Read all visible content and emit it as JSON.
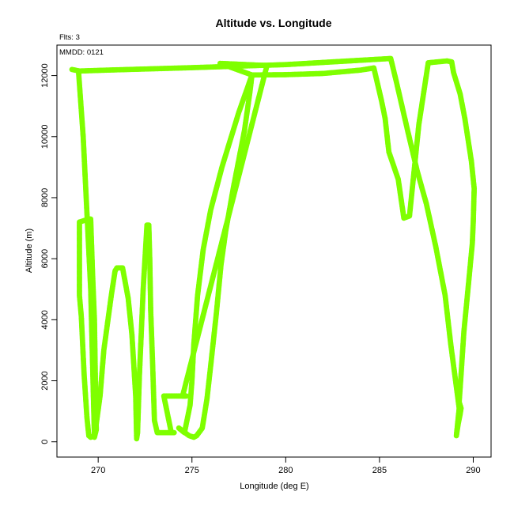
{
  "chart_data": {
    "type": "scatter",
    "title": "Altitude vs. Longitude",
    "xlabel": "Longitude (deg E)",
    "ylabel": "Altitude (m)",
    "annotations": [
      "Flts: 3",
      "MMDD: 0121"
    ],
    "xlim": [
      267.8,
      290.95
    ],
    "ylim": [
      -500,
      13000
    ],
    "x_ticks": [
      270,
      275,
      280,
      285,
      290
    ],
    "y_ticks": [
      0,
      2000,
      4000,
      6000,
      8000,
      10000,
      12000
    ],
    "grid": false,
    "legend": "none",
    "color": "#7fff00",
    "series": [
      {
        "points": [
          [
            268.6,
            12200
          ],
          [
            269.0,
            12150
          ],
          [
            270.5,
            12180
          ],
          [
            275.0,
            12260
          ],
          [
            280.0,
            12360
          ],
          [
            285.6,
            12560
          ],
          [
            285.9,
            11800
          ],
          [
            286.5,
            10200
          ],
          [
            287.0,
            8900
          ],
          [
            287.5,
            7800
          ],
          [
            288.0,
            6400
          ],
          [
            288.5,
            4800
          ],
          [
            288.8,
            3200
          ],
          [
            289.1,
            1800
          ],
          [
            289.25,
            1100
          ],
          [
            289.1,
            200
          ],
          [
            289.2,
            600
          ],
          [
            289.3,
            900
          ],
          [
            289.35,
            1100
          ],
          [
            289.25,
            1300
          ],
          [
            289.35,
            2200
          ],
          [
            289.5,
            3600
          ],
          [
            289.75,
            5200
          ],
          [
            289.95,
            6500
          ],
          [
            290.0,
            7200
          ],
          [
            290.05,
            8300
          ],
          [
            289.9,
            9200
          ],
          [
            289.55,
            10600
          ],
          [
            289.3,
            11400
          ],
          [
            288.95,
            12100
          ],
          [
            288.85,
            12450
          ],
          [
            288.6,
            12480
          ],
          [
            287.6,
            12420
          ],
          [
            287.1,
            10400
          ],
          [
            286.6,
            7400
          ],
          [
            286.3,
            7330
          ],
          [
            286.0,
            8600
          ],
          [
            285.5,
            9500
          ],
          [
            285.3,
            10600
          ],
          [
            285.1,
            11200
          ],
          [
            284.7,
            12250
          ],
          [
            284.0,
            12180
          ],
          [
            282.0,
            12070
          ],
          [
            280.0,
            12030
          ],
          [
            278.2,
            12020
          ],
          [
            277.5,
            10800
          ],
          [
            276.6,
            9000
          ],
          [
            276.0,
            7600
          ],
          [
            275.6,
            6300
          ],
          [
            275.3,
            4800
          ],
          [
            275.1,
            3200
          ],
          [
            275.0,
            2000
          ],
          [
            274.9,
            1200
          ],
          [
            274.6,
            300
          ],
          [
            274.3,
            450
          ],
          [
            274.85,
            200
          ],
          [
            275.1,
            150
          ],
          [
            275.25,
            200
          ],
          [
            275.55,
            450
          ],
          [
            275.8,
            1400
          ],
          [
            276.0,
            2500
          ],
          [
            276.3,
            4200
          ],
          [
            276.55,
            5800
          ],
          [
            276.8,
            6900
          ],
          [
            277.2,
            8300
          ],
          [
            277.8,
            10200
          ],
          [
            278.1,
            11500
          ],
          [
            278.2,
            12020
          ],
          [
            276.5,
            12400
          ],
          [
            279.0,
            12330
          ],
          [
            274.5,
            1500
          ],
          [
            274.7,
            1500
          ],
          [
            274.2,
            1500
          ],
          [
            274.0,
            1500
          ],
          [
            273.7,
            1500
          ],
          [
            273.5,
            1500
          ],
          [
            273.9,
            300
          ],
          [
            274.05,
            300
          ],
          [
            273.6,
            300
          ],
          [
            273.35,
            300
          ],
          [
            273.15,
            300
          ],
          [
            273.0,
            700
          ],
          [
            272.9,
            2600
          ],
          [
            272.8,
            4300
          ],
          [
            272.75,
            6000
          ],
          [
            272.7,
            7100
          ],
          [
            272.6,
            7100
          ],
          [
            272.4,
            5000
          ],
          [
            272.2,
            2200
          ],
          [
            272.1,
            300
          ],
          [
            272.05,
            100
          ],
          [
            272.0,
            1500
          ],
          [
            271.8,
            3500
          ],
          [
            271.6,
            4700
          ],
          [
            271.3,
            5700
          ],
          [
            271.0,
            5700
          ],
          [
            270.9,
            5600
          ],
          [
            270.7,
            4800
          ],
          [
            270.3,
            3000
          ],
          [
            270.1,
            1500
          ],
          [
            269.9,
            600
          ],
          [
            269.8,
            200
          ],
          [
            269.6,
            150
          ],
          [
            269.5,
            200
          ],
          [
            269.4,
            800
          ],
          [
            269.25,
            2200
          ],
          [
            269.1,
            4100
          ],
          [
            269.0,
            4800
          ],
          [
            269.0,
            7200
          ],
          [
            269.5,
            7300
          ],
          [
            269.6,
            7300
          ],
          [
            269.7,
            5500
          ],
          [
            269.8,
            4000
          ],
          [
            269.85,
            2000
          ],
          [
            269.9,
            400
          ],
          [
            269.8,
            150
          ],
          [
            269.6,
            5000
          ],
          [
            269.2,
            10000
          ],
          [
            268.95,
            12150
          ]
        ]
      }
    ]
  }
}
